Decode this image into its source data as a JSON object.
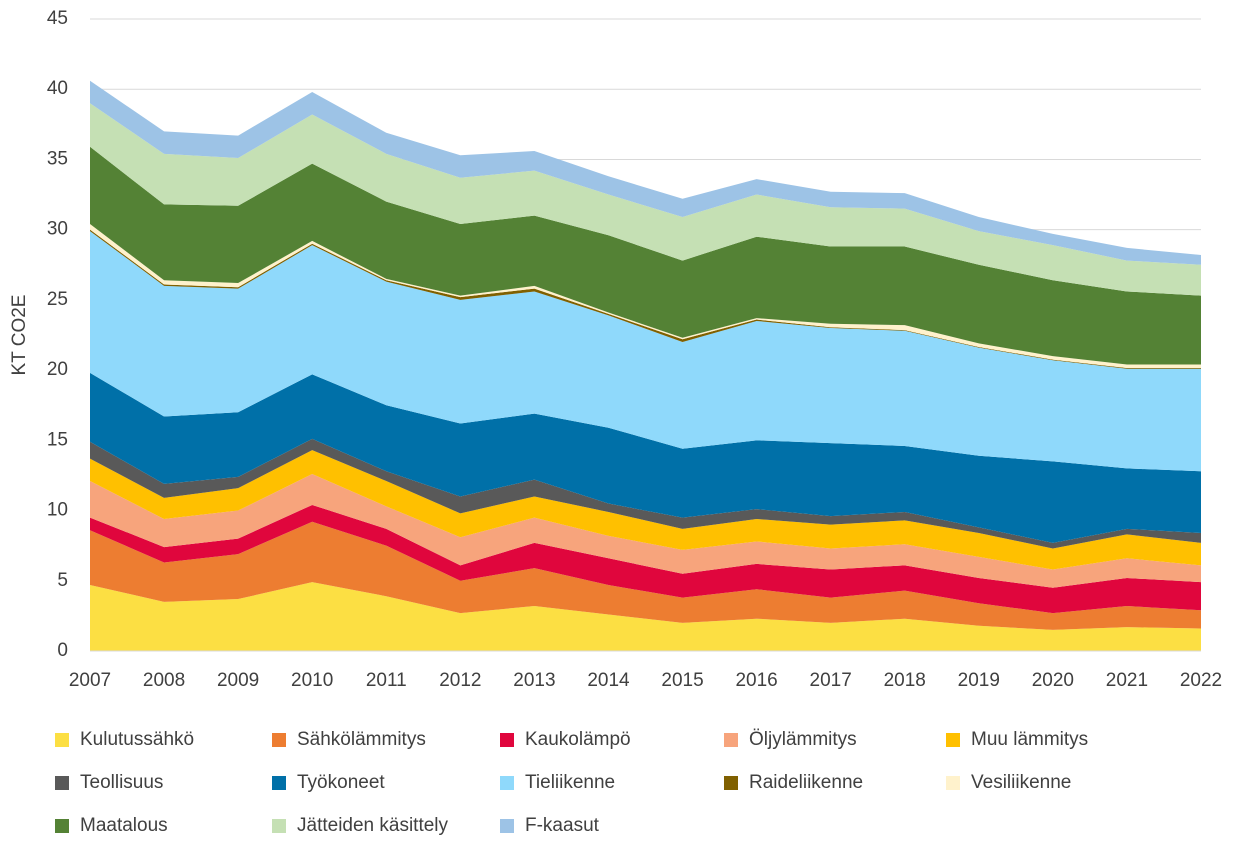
{
  "chart_data": {
    "type": "stacked_area",
    "y_label": "KT CO2E",
    "categories": [
      "2007",
      "2008",
      "2009",
      "2010",
      "2011",
      "2012",
      "2013",
      "2014",
      "2015",
      "2016",
      "2017",
      "2018",
      "2019",
      "2020",
      "2021",
      "2022"
    ],
    "ylim": [
      0,
      45
    ],
    "yticks": [
      0,
      5,
      10,
      15,
      20,
      25,
      30,
      35,
      40,
      45
    ],
    "grid": true,
    "legend": "bottom",
    "series": [
      {
        "name": "Kulutussähkö",
        "color": "#fcdf43",
        "values": [
          4.7,
          3.5,
          3.7,
          4.9,
          3.9,
          2.7,
          3.2,
          2.6,
          2.0,
          2.3,
          2.0,
          2.3,
          1.8,
          1.5,
          1.7,
          1.6
        ]
      },
      {
        "name": "Sähkölämmitys",
        "color": "#ed7d31",
        "values": [
          3.9,
          2.8,
          3.2,
          4.3,
          3.6,
          2.3,
          2.7,
          2.1,
          1.8,
          2.1,
          1.8,
          2.0,
          1.6,
          1.2,
          1.5,
          1.3
        ]
      },
      {
        "name": "Kaukolämpö",
        "color": "#e0063d",
        "values": [
          0.9,
          1.1,
          1.1,
          1.2,
          1.2,
          1.1,
          1.8,
          1.9,
          1.7,
          1.8,
          2.0,
          1.8,
          1.8,
          1.8,
          2.0,
          2.0
        ]
      },
      {
        "name": "Öljylämmitys",
        "color": "#f7a47c",
        "values": [
          2.6,
          2.0,
          2.0,
          2.2,
          1.6,
          2.0,
          1.8,
          1.6,
          1.7,
          1.6,
          1.5,
          1.5,
          1.5,
          1.3,
          1.4,
          1.2
        ]
      },
      {
        "name": "Muu lämmitys",
        "color": "#ffc000",
        "values": [
          1.6,
          1.5,
          1.6,
          1.7,
          1.8,
          1.7,
          1.5,
          1.7,
          1.5,
          1.6,
          1.7,
          1.7,
          1.7,
          1.5,
          1.7,
          1.6
        ]
      },
      {
        "name": "Teollisuus",
        "color": "#595959",
        "values": [
          1.2,
          1.0,
          0.8,
          0.8,
          0.7,
          1.2,
          1.2,
          0.6,
          0.8,
          0.7,
          0.6,
          0.6,
          0.4,
          0.4,
          0.4,
          0.7
        ]
      },
      {
        "name": "Työkoneet",
        "color": "#0070a8",
        "values": [
          4.9,
          4.8,
          4.6,
          4.6,
          4.7,
          5.2,
          4.7,
          5.4,
          4.9,
          4.9,
          5.2,
          4.7,
          5.1,
          5.8,
          4.3,
          4.4
        ]
      },
      {
        "name": "Tieliikenne",
        "color": "#8fd9fb",
        "values": [
          10.1,
          9.3,
          8.8,
          9.2,
          8.8,
          8.8,
          8.7,
          8.0,
          7.6,
          8.5,
          8.2,
          8.2,
          7.7,
          7.2,
          7.1,
          7.3
        ]
      },
      {
        "name": "Raideliikenne",
        "color": "#806000",
        "values": [
          0.1,
          0.1,
          0.1,
          0.1,
          0.1,
          0.2,
          0.2,
          0.1,
          0.2,
          0.1,
          0.05,
          0.05,
          0.05,
          0.05,
          0.05,
          0.05
        ]
      },
      {
        "name": "Vesiliikenne",
        "color": "#fff2cc",
        "values": [
          0.4,
          0.3,
          0.3,
          0.2,
          0.1,
          0.1,
          0.2,
          0.1,
          0.1,
          0.1,
          0.25,
          0.35,
          0.25,
          0.25,
          0.25,
          0.25
        ]
      },
      {
        "name": "Maatalous",
        "color": "#548235",
        "values": [
          5.5,
          5.4,
          5.5,
          5.5,
          5.5,
          5.1,
          5.0,
          5.5,
          5.5,
          5.8,
          5.5,
          5.6,
          5.6,
          5.4,
          5.2,
          4.9
        ]
      },
      {
        "name": "Jätteiden käsittely",
        "color": "#c5e0b4",
        "values": [
          3.1,
          3.6,
          3.4,
          3.5,
          3.4,
          3.3,
          3.2,
          2.9,
          3.1,
          3.0,
          2.8,
          2.7,
          2.4,
          2.5,
          2.2,
          2.2
        ]
      },
      {
        "name": "F-kaasut",
        "color": "#9dc3e6",
        "values": [
          1.6,
          1.6,
          1.6,
          1.6,
          1.5,
          1.6,
          1.4,
          1.3,
          1.3,
          1.1,
          1.1,
          1.1,
          1.0,
          0.8,
          0.9,
          0.7
        ]
      }
    ]
  }
}
